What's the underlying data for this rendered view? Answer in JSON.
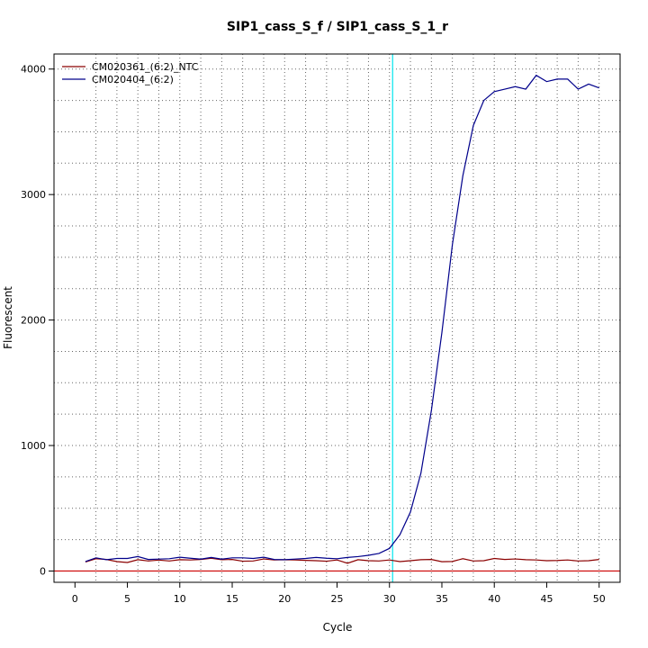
{
  "chart_data": {
    "type": "line",
    "title": "SIP1_cass_S_f / SIP1_cass_S_1_r",
    "xlabel": "Cycle",
    "ylabel": "Fluorescent",
    "xlim": [
      -2,
      52
    ],
    "ylim": [
      -90,
      4120
    ],
    "x_ticks": [
      0,
      5,
      10,
      15,
      20,
      25,
      30,
      35,
      40,
      45,
      50
    ],
    "y_ticks": [
      0,
      1000,
      2000,
      3000,
      4000
    ],
    "x_grid": [
      2,
      4,
      6,
      8,
      10,
      12,
      14,
      16,
      18,
      20,
      22,
      24,
      26,
      28,
      30,
      32,
      34,
      36,
      38,
      40,
      42,
      44,
      46,
      48,
      50
    ],
    "y_grid": [
      0,
      250,
      500,
      750,
      1000,
      1250,
      1500,
      1750,
      2000,
      2250,
      2500,
      2750,
      3000,
      3250,
      3500,
      3750,
      4000
    ],
    "grid": true,
    "legend_position": "top-left",
    "threshold": {
      "x": 30.3,
      "color": "#00e5ee"
    },
    "baseline": {
      "y": 0,
      "color": "#cc0000"
    },
    "x": [
      1,
      2,
      3,
      4,
      5,
      6,
      7,
      8,
      9,
      10,
      11,
      12,
      13,
      14,
      15,
      16,
      17,
      18,
      19,
      20,
      21,
      22,
      23,
      24,
      25,
      26,
      27,
      28,
      29,
      30,
      31,
      32,
      33,
      34,
      35,
      36,
      37,
      38,
      39,
      40,
      41,
      42,
      43,
      44,
      45,
      46,
      47,
      48,
      49,
      50
    ],
    "series": [
      {
        "name": "CM020361_(6:2)_NTC",
        "color": "#8b0000",
        "values": [
          72,
          98,
          92,
          75,
          68,
          90,
          80,
          87,
          80,
          90,
          88,
          92,
          102,
          90,
          92,
          78,
          80,
          96,
          88,
          90,
          88,
          85,
          82,
          78,
          88,
          62,
          90,
          82,
          80,
          88,
          75,
          82,
          90,
          92,
          74,
          76,
          98,
          80,
          82,
          100,
          92,
          96,
          90,
          88,
          82,
          84,
          88,
          80,
          82,
          92
        ]
      },
      {
        "name": "CM020404_(6:2)",
        "color": "#00008b",
        "values": [
          75,
          105,
          90,
          100,
          100,
          115,
          92,
          95,
          98,
          110,
          102,
          95,
          108,
          95,
          105,
          105,
          100,
          110,
          92,
          90,
          95,
          100,
          108,
          102,
          98,
          108,
          115,
          125,
          140,
          180,
          290,
          470,
          780,
          1280,
          1900,
          2600,
          3150,
          3550,
          3750,
          3820,
          3840,
          3860,
          3840,
          3950,
          3900,
          3920,
          3920,
          3840,
          3880,
          3850
        ]
      }
    ]
  }
}
